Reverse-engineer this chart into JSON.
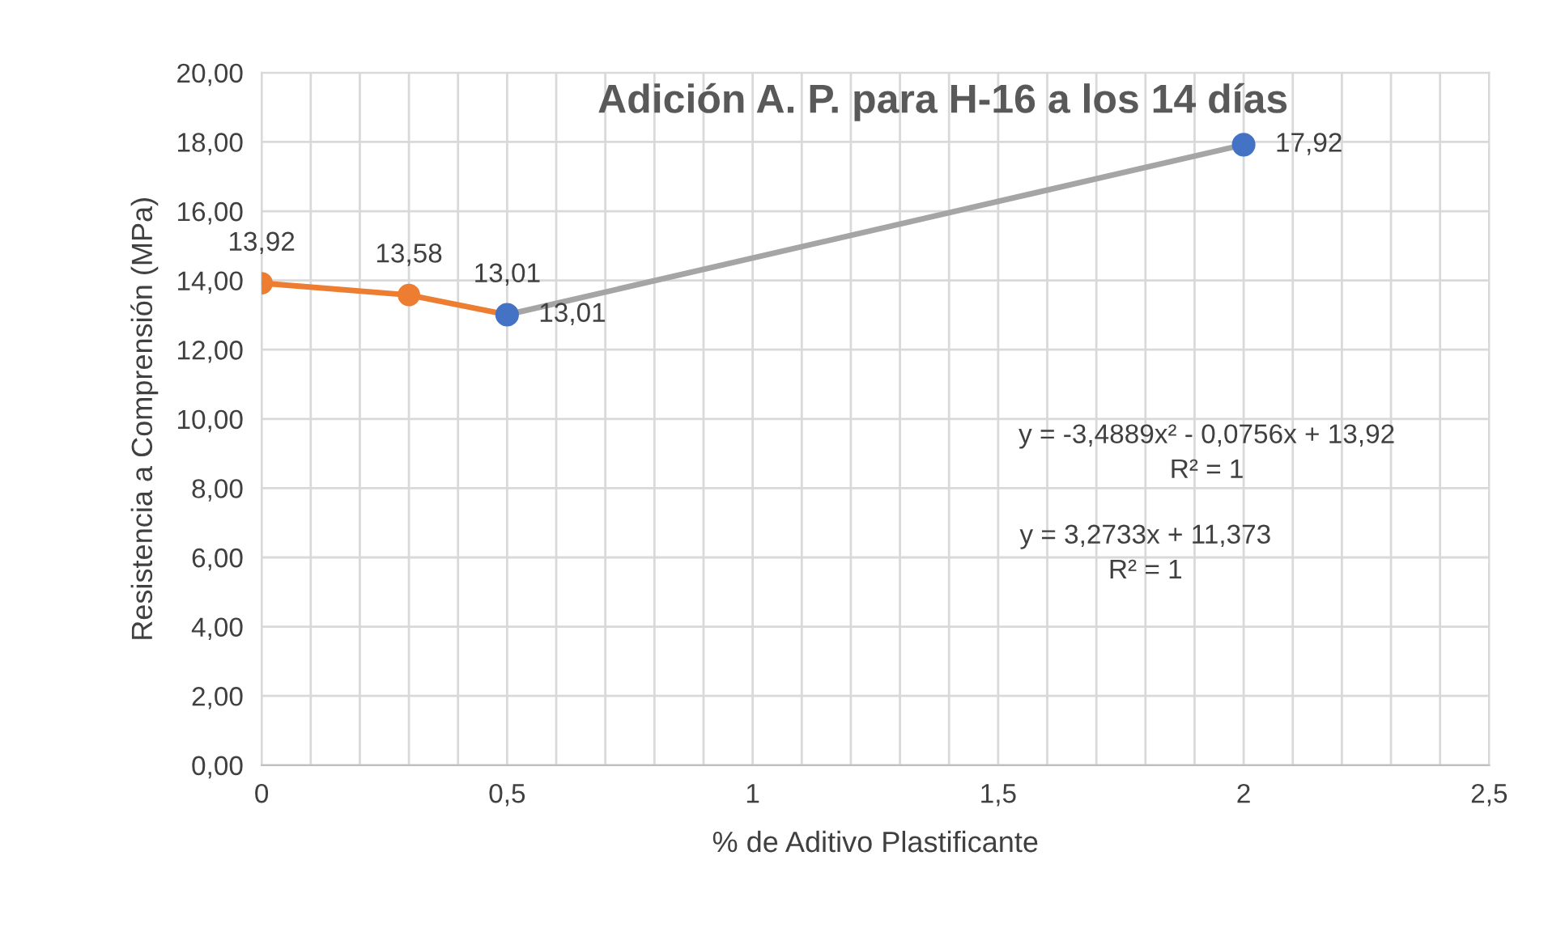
{
  "chart_data": {
    "type": "line",
    "title": "Adición A. P. para H-16 a los 14 días",
    "xlabel": "% de Aditivo Plastificante",
    "ylabel": "Resistencia a Comprensión (MPa)",
    "xlim": [
      0,
      2.5
    ],
    "xticks": [
      0,
      {
        "value": 0.1,
        "label": null
      },
      {
        "value": 0.2,
        "label": null
      },
      {
        "value": 0.3,
        "label": null
      },
      {
        "value": 0.4,
        "label": null
      },
      {
        "value": 0.5,
        "label": "0,5"
      },
      {
        "value": 0.6,
        "label": null
      },
      {
        "value": 0.7,
        "label": null
      },
      {
        "value": 0.8,
        "label": null
      },
      {
        "value": 0.9,
        "label": null
      },
      1,
      {
        "value": 1.1,
        "label": null
      },
      {
        "value": 1.2,
        "label": null
      },
      {
        "value": 1.3,
        "label": null
      },
      {
        "value": 1.4,
        "label": null
      },
      {
        "value": 1.5,
        "label": "1,5"
      },
      {
        "value": 1.6,
        "label": null
      },
      {
        "value": 1.7,
        "label": null
      },
      {
        "value": 1.8,
        "label": null
      },
      {
        "value": 1.9,
        "label": null
      },
      2,
      {
        "value": 2.1,
        "label": null
      },
      {
        "value": 2.2,
        "label": null
      },
      {
        "value": 2.3,
        "label": null
      },
      {
        "value": 2.4,
        "label": null
      },
      {
        "value": 2.5,
        "label": "2,5"
      }
    ],
    "ylim": [
      0,
      20
    ],
    "yticks": [
      {
        "value": 0,
        "label": "0,00"
      },
      {
        "value": 2,
        "label": "2,00"
      },
      {
        "value": 4,
        "label": "4,00"
      },
      {
        "value": 6,
        "label": "6,00"
      },
      {
        "value": 8,
        "label": "8,00"
      },
      {
        "value": 10,
        "label": "10,00"
      },
      {
        "value": 12,
        "label": "12,00"
      },
      {
        "value": 14,
        "label": "14,00"
      },
      {
        "value": 16,
        "label": "16,00"
      },
      {
        "value": 18,
        "label": "18,00"
      },
      {
        "value": 20,
        "label": "20,00"
      }
    ],
    "grid": true,
    "series": [
      {
        "color": "#ed7d31",
        "marker": "circle",
        "x": [
          0,
          0.3,
          0.5
        ],
        "values": [
          13.92,
          13.58,
          13.01
        ],
        "value_labels": [
          "13,92",
          "13,58",
          "13,01"
        ]
      },
      {
        "color": "#a5a5a5",
        "x": [
          0.5,
          2
        ],
        "values": [
          13.01,
          17.92
        ]
      },
      {
        "type": "scatter",
        "color": "#4472c4",
        "marker": "circle",
        "x": [
          0.5,
          2
        ],
        "values": [
          13.01,
          17.92
        ],
        "value_labels": [
          "13,01",
          "17,92"
        ]
      }
    ],
    "annotations": [
      "y = -3,4889x² - 0,0756x + 13,92\nR² = 1",
      "y = 3,2733x + 11,373\nR² = 1"
    ]
  }
}
